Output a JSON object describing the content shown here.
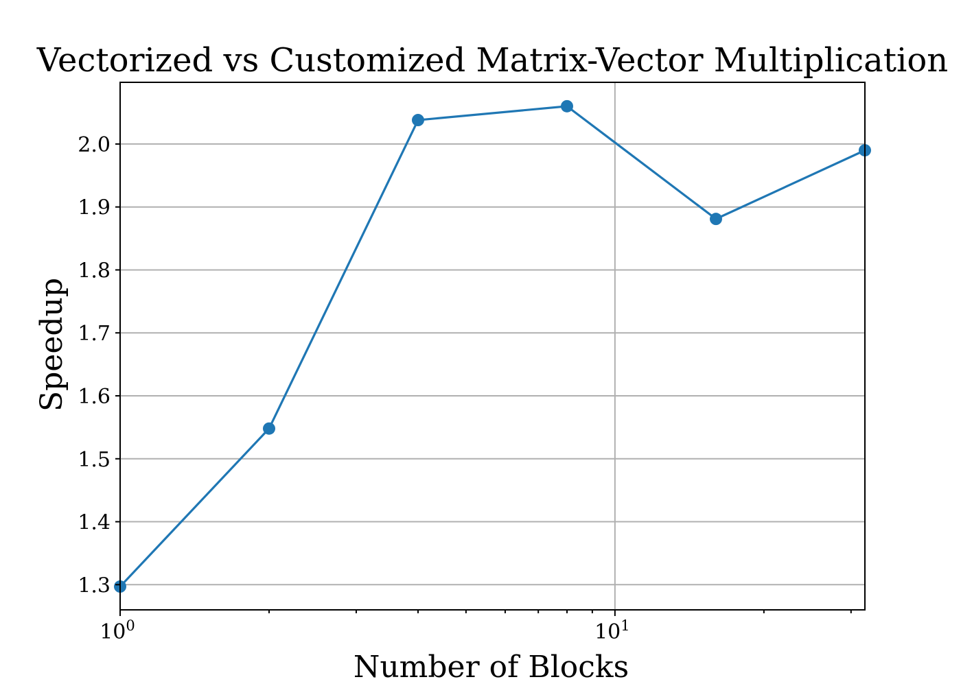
{
  "chart_data": {
    "type": "line",
    "title": "Vectorized vs Customized Matrix-Vector Multiplication",
    "xlabel": "Number of Blocks",
    "ylabel": "Speedup",
    "xscale": "log",
    "xlim": [
      1,
      32
    ],
    "ylim": [
      1.26,
      2.098
    ],
    "x_major_ticks": [
      {
        "value": 1,
        "base": "10",
        "exp": "0"
      },
      {
        "value": 10,
        "base": "10",
        "exp": "1"
      }
    ],
    "x_minor_ticks": [
      2,
      3,
      4,
      5,
      6,
      7,
      8,
      9,
      20,
      30
    ],
    "y_ticks": [
      1.3,
      1.4,
      1.5,
      1.6,
      1.7,
      1.8,
      1.9,
      2.0
    ],
    "y_tick_labels": [
      "1.3",
      "1.4",
      "1.5",
      "1.6",
      "1.7",
      "1.8",
      "1.9",
      "2.0"
    ],
    "grid": true,
    "series": [
      {
        "color": "#1f77b4",
        "marker": "circle",
        "x": [
          1,
          2,
          4,
          8,
          16,
          32
        ],
        "y": [
          1.297,
          1.548,
          2.038,
          2.06,
          1.881,
          1.99
        ]
      }
    ]
  }
}
